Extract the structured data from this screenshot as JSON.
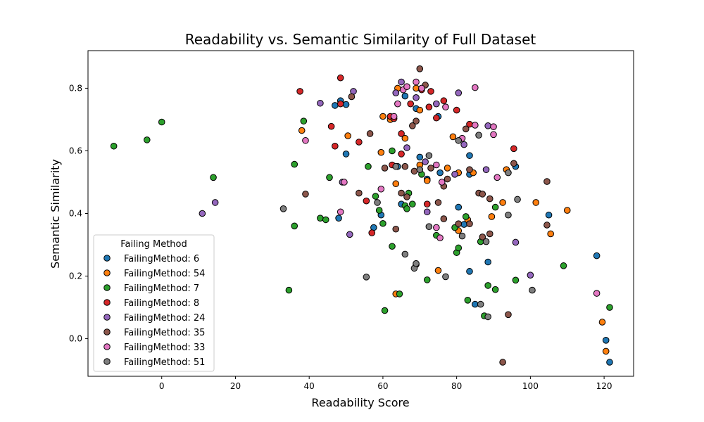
{
  "chart_data": {
    "type": "scatter",
    "title": "Readability vs. Semantic Similarity of Full Dataset",
    "xlabel": "Readability Score",
    "ylabel": "Semantic Similarity",
    "xlim": [
      -20,
      128
    ],
    "ylim": [
      -0.12,
      0.92
    ],
    "xticks": [
      0,
      20,
      40,
      60,
      80,
      100,
      120
    ],
    "yticks": [
      0.0,
      0.2,
      0.4,
      0.6,
      0.8
    ],
    "ytick_labels": [
      "0.0",
      "0.2",
      "0.4",
      "0.6",
      "0.8"
    ],
    "grid": false,
    "legend": {
      "title": "Failing Method",
      "placement": "lower-left"
    },
    "series": [
      {
        "name": "FailingMethod: 6",
        "color": "#1f77b4",
        "points": [
          [
            47,
            0.745
          ],
          [
            48.5,
            0.76
          ],
          [
            50,
            0.748
          ],
          [
            50,
            0.59
          ],
          [
            48,
            0.385
          ],
          [
            57.5,
            0.355
          ],
          [
            59.5,
            0.395
          ],
          [
            64,
            0.55
          ],
          [
            65,
            0.43
          ],
          [
            66,
            0.775
          ],
          [
            69,
            0.735
          ],
          [
            70,
            0.58
          ],
          [
            72,
            0.51
          ],
          [
            75,
            0.71
          ],
          [
            75.5,
            0.53
          ],
          [
            80.5,
            0.42
          ],
          [
            82,
            0.365
          ],
          [
            83.5,
            0.585
          ],
          [
            83.5,
            0.525
          ],
          [
            83.5,
            0.215
          ],
          [
            85,
            0.11
          ],
          [
            88.5,
            0.245
          ],
          [
            96,
            0.55
          ],
          [
            105,
            0.395
          ],
          [
            118,
            0.265
          ],
          [
            120.5,
            -0.005
          ],
          [
            121.5,
            -0.075
          ]
        ]
      },
      {
        "name": "FailingMethod: 54",
        "color": "#ff7f0e",
        "points": [
          [
            38,
            0.665
          ],
          [
            50.5,
            0.648
          ],
          [
            59.5,
            0.595
          ],
          [
            60,
            0.71
          ],
          [
            62,
            0.7
          ],
          [
            63.5,
            0.495
          ],
          [
            64,
            0.8
          ],
          [
            66,
            0.64
          ],
          [
            69,
            0.8
          ],
          [
            70,
            0.555
          ],
          [
            70,
            0.73
          ],
          [
            72,
            0.505
          ],
          [
            75,
            0.218
          ],
          [
            77.5,
            0.545
          ],
          [
            79,
            0.645
          ],
          [
            80.5,
            0.53
          ],
          [
            80.5,
            0.345
          ],
          [
            83,
            0.38
          ],
          [
            84.5,
            0.53
          ],
          [
            89.5,
            0.39
          ],
          [
            92.5,
            0.435
          ],
          [
            93.5,
            0.54
          ],
          [
            101.5,
            0.435
          ],
          [
            105.5,
            0.335
          ],
          [
            110,
            0.41
          ],
          [
            119.5,
            0.053
          ],
          [
            120.5,
            -0.04
          ],
          [
            63.5,
            0.143
          ]
        ]
      },
      {
        "name": "FailingMethod: 7",
        "color": "#2ca02c",
        "points": [
          [
            -13,
            0.615
          ],
          [
            -4,
            0.635
          ],
          [
            0,
            0.692
          ],
          [
            14,
            0.515
          ],
          [
            36,
            0.36
          ],
          [
            36,
            0.557
          ],
          [
            34.5,
            0.155
          ],
          [
            38.5,
            0.695
          ],
          [
            43,
            0.385
          ],
          [
            44.5,
            0.38
          ],
          [
            45.5,
            0.515
          ],
          [
            56,
            0.55
          ],
          [
            58,
            0.455
          ],
          [
            59,
            0.41
          ],
          [
            60,
            0.368
          ],
          [
            60.5,
            0.09
          ],
          [
            62.5,
            0.6
          ],
          [
            62.5,
            0.295
          ],
          [
            64.5,
            0.143
          ],
          [
            66,
            0.425
          ],
          [
            67,
            0.465
          ],
          [
            66.5,
            0.415
          ],
          [
            68,
            0.43
          ],
          [
            70.5,
            0.525
          ],
          [
            72,
            0.188
          ],
          [
            74.5,
            0.33
          ],
          [
            79.5,
            0.355
          ],
          [
            80,
            0.275
          ],
          [
            80.5,
            0.29
          ],
          [
            82.5,
            0.39
          ],
          [
            83,
            0.123
          ],
          [
            86.5,
            0.31
          ],
          [
            87.5,
            0.073
          ],
          [
            88.5,
            0.17
          ],
          [
            90.5,
            0.157
          ],
          [
            90.5,
            0.42
          ],
          [
            96,
            0.187
          ],
          [
            109,
            0.233
          ],
          [
            121.5,
            0.1
          ]
        ]
      },
      {
        "name": "FailingMethod: 8",
        "color": "#d62728",
        "points": [
          [
            37.5,
            0.79
          ],
          [
            46,
            0.678
          ],
          [
            47,
            0.615
          ],
          [
            48.5,
            0.833
          ],
          [
            48.5,
            0.75
          ],
          [
            53.5,
            0.628
          ],
          [
            55.5,
            0.44
          ],
          [
            57,
            0.338
          ],
          [
            62,
            0.71
          ],
          [
            62.5,
            0.555
          ],
          [
            63,
            0.703
          ],
          [
            65,
            0.655
          ],
          [
            65,
            0.59
          ],
          [
            67.5,
            0.75
          ],
          [
            69,
            0.237
          ],
          [
            70.5,
            0.795
          ],
          [
            72,
            0.43
          ],
          [
            72.5,
            0.74
          ],
          [
            73,
            0.79
          ],
          [
            74.5,
            0.705
          ],
          [
            76.5,
            0.76
          ],
          [
            80,
            0.73
          ],
          [
            83.5,
            0.685
          ],
          [
            95.5,
            0.607
          ]
        ]
      },
      {
        "name": "FailingMethod: 24",
        "color": "#9467bd",
        "points": [
          [
            11,
            0.4
          ],
          [
            14.5,
            0.435
          ],
          [
            43,
            0.752
          ],
          [
            49,
            0.5
          ],
          [
            51,
            0.333
          ],
          [
            52,
            0.79
          ],
          [
            63.5,
            0.785
          ],
          [
            65,
            0.82
          ],
          [
            66.5,
            0.61
          ],
          [
            69,
            0.77
          ],
          [
            71.5,
            0.565
          ],
          [
            72,
            0.405
          ],
          [
            74.5,
            0.75
          ],
          [
            79.5,
            0.525
          ],
          [
            80.5,
            0.785
          ],
          [
            82,
            0.62
          ],
          [
            88,
            0.54
          ],
          [
            88.5,
            0.68
          ],
          [
            96,
            0.308
          ],
          [
            100,
            0.203
          ]
        ]
      },
      {
        "name": "FailingMethod: 35",
        "color": "#8c564b",
        "points": [
          [
            39,
            0.462
          ],
          [
            51.5,
            0.773
          ],
          [
            53.5,
            0.465
          ],
          [
            56.5,
            0.655
          ],
          [
            60.5,
            0.545
          ],
          [
            63.5,
            0.35
          ],
          [
            65,
            0.465
          ],
          [
            66,
            0.55
          ],
          [
            66.5,
            0.453
          ],
          [
            68,
            0.68
          ],
          [
            68.5,
            0.535
          ],
          [
            69,
            0.695
          ],
          [
            70,
            0.862
          ],
          [
            71.5,
            0.81
          ],
          [
            73,
            0.545
          ],
          [
            75,
            0.435
          ],
          [
            76.5,
            0.383
          ],
          [
            76.5,
            0.487
          ],
          [
            77.5,
            0.51
          ],
          [
            80.5,
            0.367
          ],
          [
            82.5,
            0.67
          ],
          [
            83.5,
            0.54
          ],
          [
            83.5,
            0.367
          ],
          [
            86,
            0.465
          ],
          [
            87,
            0.325
          ],
          [
            87,
            0.462
          ],
          [
            89,
            0.447
          ],
          [
            89,
            0.335
          ],
          [
            94,
            0.077
          ],
          [
            95.5,
            0.56
          ],
          [
            104.5,
            0.502
          ],
          [
            104.5,
            0.363
          ],
          [
            92.5,
            -0.075
          ]
        ]
      },
      {
        "name": "FailingMethod: 33",
        "color": "#e377c2",
        "points": [
          [
            39,
            0.633
          ],
          [
            48.5,
            0.405
          ],
          [
            49.5,
            0.5
          ],
          [
            59.5,
            0.478
          ],
          [
            63,
            0.71
          ],
          [
            64,
            0.75
          ],
          [
            65.5,
            0.795
          ],
          [
            66.5,
            0.805
          ],
          [
            69,
            0.82
          ],
          [
            70.5,
            0.8
          ],
          [
            74.5,
            0.355
          ],
          [
            74.5,
            0.555
          ],
          [
            75.5,
            0.322
          ],
          [
            76,
            0.5
          ],
          [
            77,
            0.74
          ],
          [
            81.5,
            0.64
          ],
          [
            85,
            0.802
          ],
          [
            85,
            0.682
          ],
          [
            90,
            0.677
          ],
          [
            90,
            0.652
          ],
          [
            91,
            0.515
          ],
          [
            118,
            0.145
          ]
        ]
      },
      {
        "name": "FailingMethod: 51",
        "color": "#7f7f7f",
        "points": [
          [
            33,
            0.415
          ],
          [
            55.5,
            0.197
          ],
          [
            58.5,
            0.435
          ],
          [
            63.5,
            0.55
          ],
          [
            66,
            0.27
          ],
          [
            68.5,
            0.225
          ],
          [
            69,
            0.24
          ],
          [
            70,
            0.54
          ],
          [
            72.5,
            0.585
          ],
          [
            72.5,
            0.358
          ],
          [
            77,
            0.198
          ],
          [
            80.5,
            0.633
          ],
          [
            81.5,
            0.328
          ],
          [
            86,
            0.65
          ],
          [
            86.5,
            0.11
          ],
          [
            88,
            0.31
          ],
          [
            88.5,
            0.07
          ],
          [
            94,
            0.395
          ],
          [
            94,
            0.53
          ],
          [
            96.5,
            0.445
          ],
          [
            100.5,
            0.155
          ]
        ]
      }
    ]
  }
}
